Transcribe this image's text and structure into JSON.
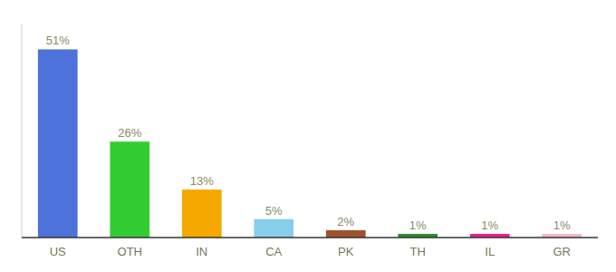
{
  "chart_data": {
    "type": "bar",
    "categories": [
      "US",
      "OTH",
      "IN",
      "CA",
      "PK",
      "TH",
      "IL",
      "GR"
    ],
    "values": [
      51,
      26,
      13,
      5,
      2,
      1,
      1,
      1
    ],
    "value_labels": [
      "51%",
      "26%",
      "13%",
      "5%",
      "2%",
      "1%",
      "1%",
      "1%"
    ],
    "colors": [
      "#4d72d9",
      "#33cc33",
      "#f5a800",
      "#87ceeb",
      "#a0522d",
      "#2d8a2d",
      "#e91e8c",
      "#f4b8c8"
    ],
    "ylim": [
      0,
      58
    ],
    "data_labels": true,
    "tick_labels": "x"
  }
}
